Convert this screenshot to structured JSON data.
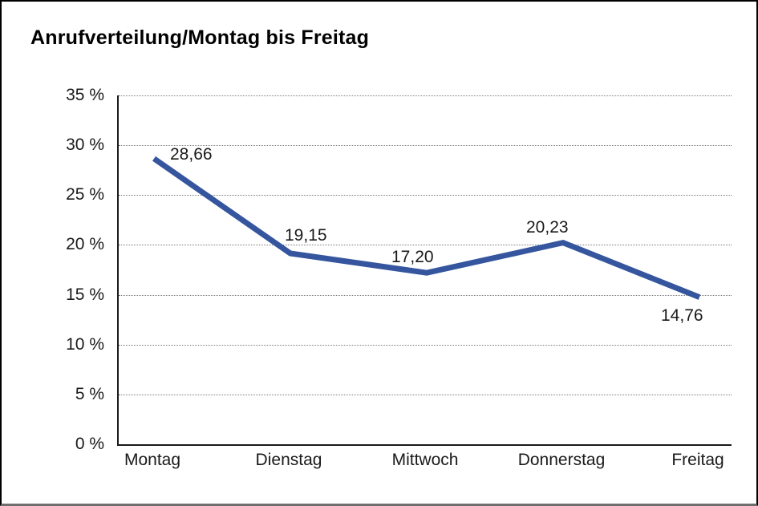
{
  "chart_data": {
    "type": "line",
    "title": "Anrufverteilung/Montag bis Freitag",
    "categories": [
      "Montag",
      "Dienstag",
      "Mittwoch",
      "Donnerstag",
      "Freitag"
    ],
    "values": [
      28.66,
      19.15,
      17.2,
      20.23,
      14.76
    ],
    "value_labels": [
      "28,66",
      "19,15",
      "17,20",
      "20,23",
      "14,76"
    ],
    "yticks": [
      "35 %",
      "30 %",
      "25 %",
      "20 %",
      "15 %",
      "10 %",
      "5 %",
      "0 %"
    ],
    "ylim": [
      0,
      35
    ],
    "ytick_step": 5,
    "xlabel": "",
    "ylabel": "",
    "grid": "horizontal-dotted",
    "legend": "none",
    "line_color": "#35569E",
    "axis_color": "#1a1a1a"
  }
}
